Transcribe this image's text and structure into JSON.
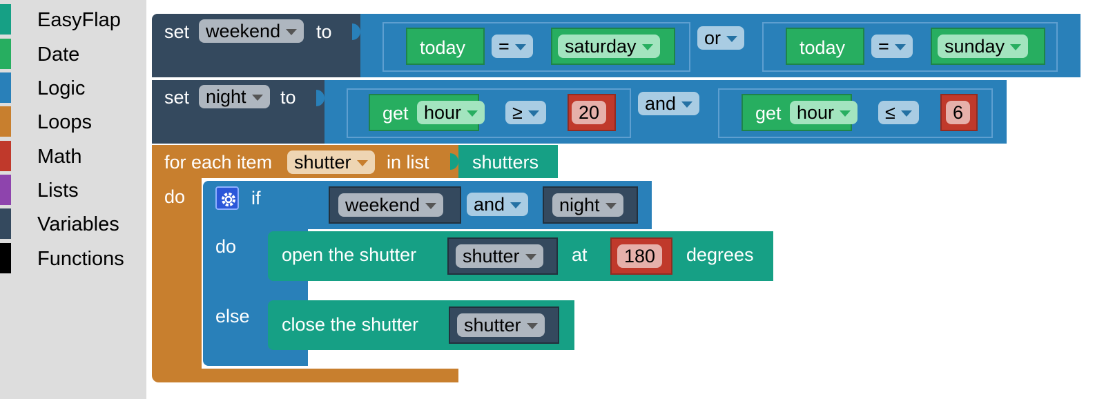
{
  "toolbox": {
    "categories": [
      {
        "label": "EasyFlap",
        "color": "#16a085"
      },
      {
        "label": "Date",
        "color": "#27ae60"
      },
      {
        "label": "Logic",
        "color": "#2980b9"
      },
      {
        "label": "Loops",
        "color": "#c87f2e"
      },
      {
        "label": "Math",
        "color": "#c0392b"
      },
      {
        "label": "Lists",
        "color": "#8e44ad"
      },
      {
        "label": "Variables",
        "color": "#34495e"
      },
      {
        "label": "Functions",
        "color": "#000000"
      }
    ]
  },
  "blocks": {
    "set_weekend": {
      "set": "set",
      "var": "weekend",
      "to": "to",
      "today1": "today",
      "eq1": "=",
      "day1": "saturday",
      "or": "or",
      "today2": "today",
      "eq2": "=",
      "day2": "sunday"
    },
    "set_night": {
      "set": "set",
      "var": "night",
      "to": "to",
      "get1": "get",
      "hour1": "hour",
      "op1": "≥",
      "num1": "20",
      "and": "and",
      "get2": "get",
      "hour2": "hour",
      "op2": "≤",
      "num2": "6"
    },
    "for_each": {
      "label": "for each item",
      "var": "shutter",
      "in_list": "in list",
      "list": "shutters",
      "do": "do"
    },
    "if_block": {
      "if": "if",
      "cond1": "weekend",
      "and": "and",
      "cond2": "night",
      "do": "do",
      "else": "else"
    },
    "open": {
      "label": "open the shutter",
      "var": "shutter",
      "at": "at",
      "angle": "180",
      "degrees": "degrees"
    },
    "close": {
      "label": "close the shutter",
      "var": "shutter"
    }
  },
  "colors": {
    "variables": "#34495e",
    "logic": "#2980b9",
    "date": "#27ae60",
    "math": "#c0392b",
    "loops": "#c87f2e",
    "easyflap": "#16a085"
  }
}
